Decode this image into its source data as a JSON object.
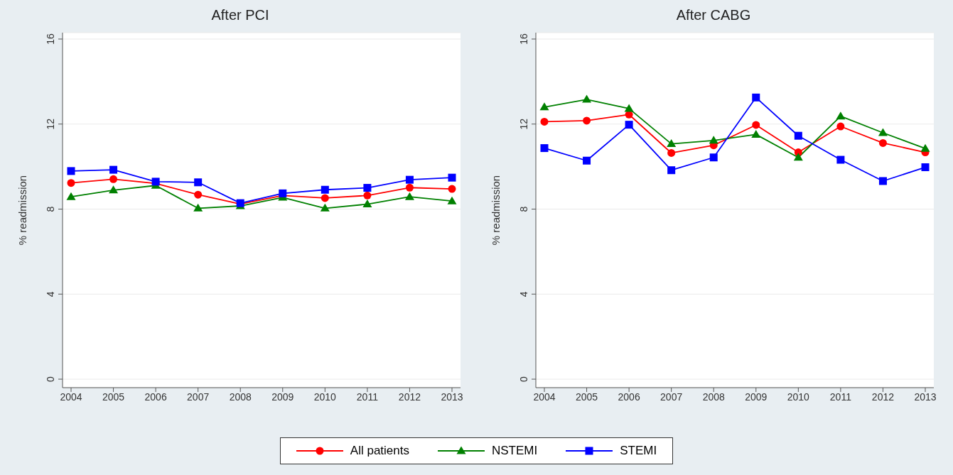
{
  "chart_data": [
    {
      "type": "line",
      "title": "After PCI",
      "ylabel": "% readmission",
      "categories": [
        "2004",
        "2005",
        "2006",
        "2007",
        "2008",
        "2009",
        "2010",
        "2011",
        "2012",
        "2013"
      ],
      "ylim": [
        -0.4,
        16.3
      ],
      "yticks": [
        0,
        4,
        8,
        12,
        16
      ],
      "grid": "y",
      "legend": "bottom",
      "series": [
        {
          "name": "All patients",
          "color": "#ff0000",
          "marker": "circle",
          "values": [
            9.23,
            9.41,
            9.21,
            8.68,
            8.24,
            8.64,
            8.52,
            8.64,
            9.01,
            8.95
          ]
        },
        {
          "name": "NSTEMI",
          "color": "#008000",
          "marker": "triangle",
          "values": [
            8.58,
            8.89,
            9.11,
            8.04,
            8.15,
            8.55,
            8.04,
            8.23,
            8.58,
            8.38
          ]
        },
        {
          "name": "STEMI",
          "color": "#0000ff",
          "marker": "square",
          "values": [
            9.79,
            9.85,
            9.29,
            9.26,
            8.28,
            8.74,
            8.91,
            9.0,
            9.38,
            9.48
          ]
        }
      ]
    },
    {
      "type": "line",
      "title": "After CABG",
      "ylabel": "% readmission",
      "categories": [
        "2004",
        "2005",
        "2006",
        "2007",
        "2008",
        "2009",
        "2010",
        "2011",
        "2012",
        "2013"
      ],
      "ylim": [
        -0.4,
        16.3
      ],
      "yticks": [
        0,
        4,
        8,
        12,
        16
      ],
      "grid": "y",
      "legend": "bottom",
      "series": [
        {
          "name": "All patients",
          "color": "#ff0000",
          "marker": "circle",
          "values": [
            12.11,
            12.16,
            12.45,
            10.64,
            11.0,
            11.96,
            10.67,
            11.89,
            11.11,
            10.67
          ]
        },
        {
          "name": "NSTEMI",
          "color": "#008000",
          "marker": "triangle",
          "values": [
            12.8,
            13.16,
            12.73,
            11.07,
            11.23,
            11.51,
            10.43,
            12.37,
            11.59,
            10.85
          ]
        },
        {
          "name": "STEMI",
          "color": "#0000ff",
          "marker": "square",
          "values": [
            10.87,
            10.28,
            11.97,
            9.83,
            10.43,
            13.25,
            11.45,
            10.32,
            9.32,
            9.97
          ]
        }
      ]
    }
  ]
}
